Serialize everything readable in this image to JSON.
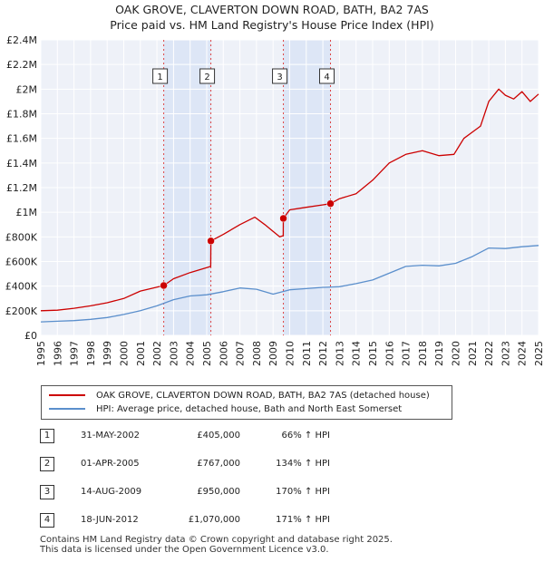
{
  "titles": {
    "line1": "OAK GROVE, CLAVERTON DOWN ROAD, BATH, BA2 7AS",
    "line2": "Price paid vs. HM Land Registry's House Price Index (HPI)"
  },
  "chart_data": {
    "type": "line",
    "title": "OAK GROVE, CLAVERTON DOWN ROAD, BATH, BA2 7AS — Price paid vs. HM Land Registry's House Price Index (HPI)",
    "xlim": [
      1995,
      2025
    ],
    "ylim": [
      0,
      2400000
    ],
    "y_ticks": [
      0,
      200000,
      400000,
      600000,
      800000,
      1000000,
      1200000,
      1400000,
      1600000,
      1800000,
      2000000,
      2200000,
      2400000
    ],
    "y_tick_labels": [
      "£0",
      "£200K",
      "£400K",
      "£600K",
      "£800K",
      "£1M",
      "£1.2M",
      "£1.4M",
      "£1.6M",
      "£1.8M",
      "£2M",
      "£2.2M",
      "£2.4M"
    ],
    "x_ticks": [
      1995,
      1996,
      1997,
      1998,
      1999,
      2000,
      2001,
      2002,
      2003,
      2004,
      2005,
      2006,
      2007,
      2008,
      2009,
      2010,
      2011,
      2012,
      2013,
      2014,
      2015,
      2016,
      2017,
      2018,
      2019,
      2020,
      2021,
      2022,
      2023,
      2024,
      2025
    ],
    "x_tick_labels": [
      "1995",
      "1996",
      "1997",
      "1998",
      "1999",
      "2000",
      "2001",
      "2002",
      "2003",
      "2004",
      "2005",
      "2006",
      "2007",
      "2008",
      "2009",
      "2010",
      "2011",
      "2012",
      "2013",
      "2014",
      "2015",
      "2016",
      "2017",
      "2018",
      "2019",
      "2020",
      "2021",
      "2022",
      "2023",
      "2024",
      "2025"
    ],
    "grid": true,
    "series": [
      {
        "name": "OAK GROVE, CLAVERTON DOWN ROAD, BATH, BA2 7AS (detached house)",
        "color": "#cc0000",
        "x": [
          1995,
          1996,
          1997,
          1998,
          1999,
          2000,
          2001,
          2002.41,
          2003,
          2004,
          2005.0,
          2005.24,
          2005.25,
          2006,
          2007,
          2007.9,
          2008.5,
          2009.4,
          2009.61,
          2009.62,
          2010,
          2011,
          2012.0,
          2012.46,
          2013,
          2014,
          2015,
          2016,
          2017,
          2018,
          2019,
          2019.9,
          2020.5,
          2021,
          2021.5,
          2022,
          2022.6,
          2023,
          2023.5,
          2024,
          2024.5,
          2025
        ],
        "y": [
          200000,
          205000,
          220000,
          240000,
          265000,
          300000,
          360000,
          405000,
          460000,
          510000,
          550000,
          560000,
          767000,
          820000,
          900000,
          960000,
          900000,
          800000,
          810000,
          950000,
          1020000,
          1040000,
          1060000,
          1070000,
          1110000,
          1150000,
          1260000,
          1400000,
          1470000,
          1500000,
          1460000,
          1470000,
          1600000,
          1650000,
          1700000,
          1900000,
          2000000,
          1950000,
          1920000,
          1980000,
          1900000,
          1960000
        ]
      },
      {
        "name": "HPI: Average price, detached house, Bath and North East Somerset",
        "color": "#5b8fcc",
        "x": [
          1995,
          1996,
          1997,
          1998,
          1999,
          2000,
          2001,
          2002,
          2003,
          2004,
          2005,
          2006,
          2007,
          2008,
          2009,
          2010,
          2011,
          2012,
          2013,
          2014,
          2015,
          2016,
          2017,
          2018,
          2019,
          2020,
          2021,
          2022,
          2023,
          2024,
          2025
        ],
        "y": [
          110000,
          115000,
          120000,
          130000,
          145000,
          170000,
          200000,
          240000,
          290000,
          320000,
          330000,
          355000,
          385000,
          375000,
          335000,
          370000,
          380000,
          390000,
          395000,
          420000,
          450000,
          505000,
          560000,
          570000,
          565000,
          585000,
          640000,
          710000,
          705000,
          720000,
          730000
        ]
      }
    ],
    "markers": [
      {
        "label": "1",
        "x": 2002.41,
        "y": 405000
      },
      {
        "label": "2",
        "x": 2005.25,
        "y": 767000
      },
      {
        "label": "3",
        "x": 2009.62,
        "y": 950000
      },
      {
        "label": "4",
        "x": 2012.46,
        "y": 1070000
      }
    ],
    "shaded_ranges": [
      [
        2002.41,
        2005.25
      ],
      [
        2009.62,
        2012.46
      ]
    ]
  },
  "legend": {
    "series1": "OAK GROVE, CLAVERTON DOWN ROAD, BATH, BA2 7AS (detached house)",
    "series2": "HPI: Average price, detached house, Bath and North East Somerset",
    "series1_color": "#cc0000",
    "series2_color": "#5b8fcc"
  },
  "sales": [
    {
      "num": "1",
      "date": "31-MAY-2002",
      "price": "£405,000",
      "hpi": "66% ↑ HPI"
    },
    {
      "num": "2",
      "date": "01-APR-2005",
      "price": "£767,000",
      "hpi": "134% ↑ HPI"
    },
    {
      "num": "3",
      "date": "14-AUG-2009",
      "price": "£950,000",
      "hpi": "170% ↑ HPI"
    },
    {
      "num": "4",
      "date": "18-JUN-2012",
      "price": "£1,070,000",
      "hpi": "171% ↑ HPI"
    }
  ],
  "footer": {
    "line1": "Contains HM Land Registry data © Crown copyright and database right 2025.",
    "line2": "This data is licensed under the Open Government Licence v3.0."
  }
}
